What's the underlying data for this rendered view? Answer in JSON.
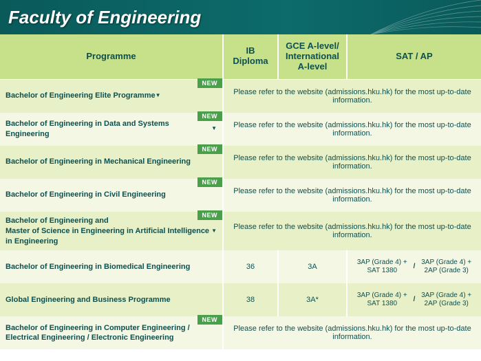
{
  "page_title": "Faculty of Engineering",
  "new_badge": "NEW",
  "columns": {
    "programme": "Programme",
    "ib": "IB Diploma",
    "gce": "GCE A-level/\nInternational\nA-level",
    "sat": "SAT / AP"
  },
  "refer_text": "Please refer to the website (admissions.hku.hk) for the most up-to-date information.",
  "rows": [
    {
      "prog": "Bachelor of Engineering Elite Programme",
      "caret": true,
      "new": true,
      "refer": true
    },
    {
      "prog": "Bachelor of Engineering in Data and Systems Engineering",
      "caret": true,
      "new": true,
      "refer": true
    },
    {
      "prog": "Bachelor of Engineering in Mechanical Engineering",
      "caret": false,
      "new": true,
      "refer": true
    },
    {
      "prog": "Bachelor of Engineering in Civil Engineering",
      "caret": false,
      "new": true,
      "refer": true
    },
    {
      "prog": "Bachelor of Engineering and\nMaster of Science in Engineering in Artificial Intelligence in Engineering",
      "caret": true,
      "new": true,
      "refer": true
    },
    {
      "prog": "Bachelor of Engineering in Biomedical Engineering",
      "caret": false,
      "new": false,
      "refer": false,
      "ib": "36",
      "gce": "3A",
      "sat1": "3AP (Grade 4) + SAT 1380",
      "sat2": "3AP (Grade 4) + 2AP (Grade 3)"
    },
    {
      "prog": "Global Engineering and Business Programme",
      "caret": false,
      "new": false,
      "refer": false,
      "ib": "38",
      "gce": "3A*",
      "sat1": "3AP (Grade 4) + SAT 1380",
      "sat2": "3AP (Grade 4) + 2AP (Grade 3)"
    },
    {
      "prog": "Bachelor of Engineering in Computer Engineering / Electrical Engineering / Electronic Engineering",
      "caret": false,
      "new": true,
      "refer": true
    }
  ],
  "colors": {
    "header_bg_start": "#0a5a5a",
    "header_bg_end": "#0d6b6b",
    "thead_bg": "#c7e08a",
    "row_odd": "#e8f0c8",
    "row_even": "#f4f7e4",
    "text": "#0c5050",
    "new_bg": "#4aa04a"
  }
}
